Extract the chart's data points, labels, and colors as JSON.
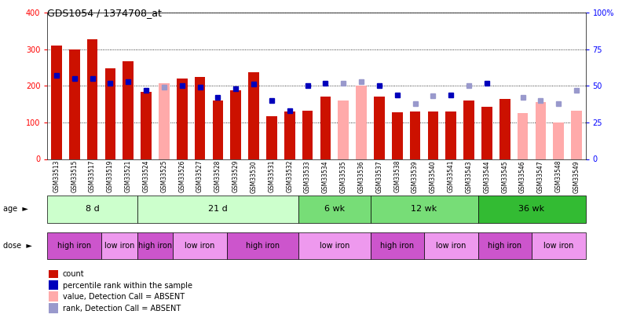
{
  "title": "GDS1054 / 1374708_at",
  "samples": [
    "GSM33513",
    "GSM33515",
    "GSM33517",
    "GSM33519",
    "GSM33521",
    "GSM33524",
    "GSM33525",
    "GSM33526",
    "GSM33527",
    "GSM33528",
    "GSM33529",
    "GSM33530",
    "GSM33531",
    "GSM33532",
    "GSM33533",
    "GSM33534",
    "GSM33535",
    "GSM33536",
    "GSM33537",
    "GSM33538",
    "GSM33539",
    "GSM33540",
    "GSM33541",
    "GSM33543",
    "GSM33544",
    "GSM33545",
    "GSM33546",
    "GSM33547",
    "GSM33548",
    "GSM33549"
  ],
  "count": [
    310,
    300,
    328,
    248,
    267,
    183,
    null,
    220,
    225,
    160,
    188,
    237,
    117,
    130,
    132,
    170,
    null,
    null,
    170,
    128,
    130,
    130,
    130,
    160,
    143,
    165,
    null,
    null,
    null,
    null
  ],
  "count_absent": [
    null,
    null,
    null,
    null,
    null,
    null,
    207,
    null,
    null,
    null,
    null,
    null,
    null,
    null,
    null,
    null,
    160,
    200,
    null,
    null,
    null,
    null,
    null,
    null,
    null,
    null,
    125,
    155,
    100,
    133
  ],
  "rank": [
    57,
    55,
    55,
    52,
    53,
    47,
    null,
    50,
    49,
    42,
    48,
    51,
    40,
    33,
    50,
    52,
    null,
    null,
    50,
    44,
    null,
    null,
    44,
    null,
    52,
    null,
    null,
    null,
    null,
    null
  ],
  "rank_absent": [
    null,
    null,
    null,
    null,
    null,
    null,
    49,
    null,
    null,
    null,
    null,
    null,
    null,
    null,
    null,
    null,
    52,
    53,
    null,
    null,
    38,
    43,
    null,
    50,
    null,
    null,
    42,
    40,
    38,
    47
  ],
  "ylim_left": [
    0,
    400
  ],
  "ylim_right": [
    0,
    100
  ],
  "yticks_left": [
    0,
    100,
    200,
    300,
    400
  ],
  "yticks_right": [
    0,
    25,
    50,
    75,
    100
  ],
  "bar_color_present": "#cc1100",
  "bar_color_absent": "#ffaaaa",
  "rank_color_present": "#0000bb",
  "rank_color_absent": "#9999cc",
  "age_groups": [
    {
      "label": "8 d",
      "start": 0,
      "end": 5,
      "color": "#ccffcc"
    },
    {
      "label": "21 d",
      "start": 5,
      "end": 14,
      "color": "#ccffcc"
    },
    {
      "label": "6 wk",
      "start": 14,
      "end": 18,
      "color": "#77dd77"
    },
    {
      "label": "12 wk",
      "start": 18,
      "end": 24,
      "color": "#77dd77"
    },
    {
      "label": "36 wk",
      "start": 24,
      "end": 30,
      "color": "#33bb33"
    }
  ],
  "dose_groups": [
    {
      "label": "high iron",
      "start": 0,
      "end": 3,
      "color": "#cc55cc"
    },
    {
      "label": "low iron",
      "start": 3,
      "end": 5,
      "color": "#ee99ee"
    },
    {
      "label": "high iron",
      "start": 5,
      "end": 7,
      "color": "#cc55cc"
    },
    {
      "label": "low iron",
      "start": 7,
      "end": 10,
      "color": "#ee99ee"
    },
    {
      "label": "high iron",
      "start": 10,
      "end": 14,
      "color": "#cc55cc"
    },
    {
      "label": "low iron",
      "start": 14,
      "end": 18,
      "color": "#ee99ee"
    },
    {
      "label": "high iron",
      "start": 18,
      "end": 21,
      "color": "#cc55cc"
    },
    {
      "label": "low iron",
      "start": 21,
      "end": 24,
      "color": "#ee99ee"
    },
    {
      "label": "high iron",
      "start": 24,
      "end": 27,
      "color": "#cc55cc"
    },
    {
      "label": "low iron",
      "start": 27,
      "end": 30,
      "color": "#ee99ee"
    }
  ]
}
